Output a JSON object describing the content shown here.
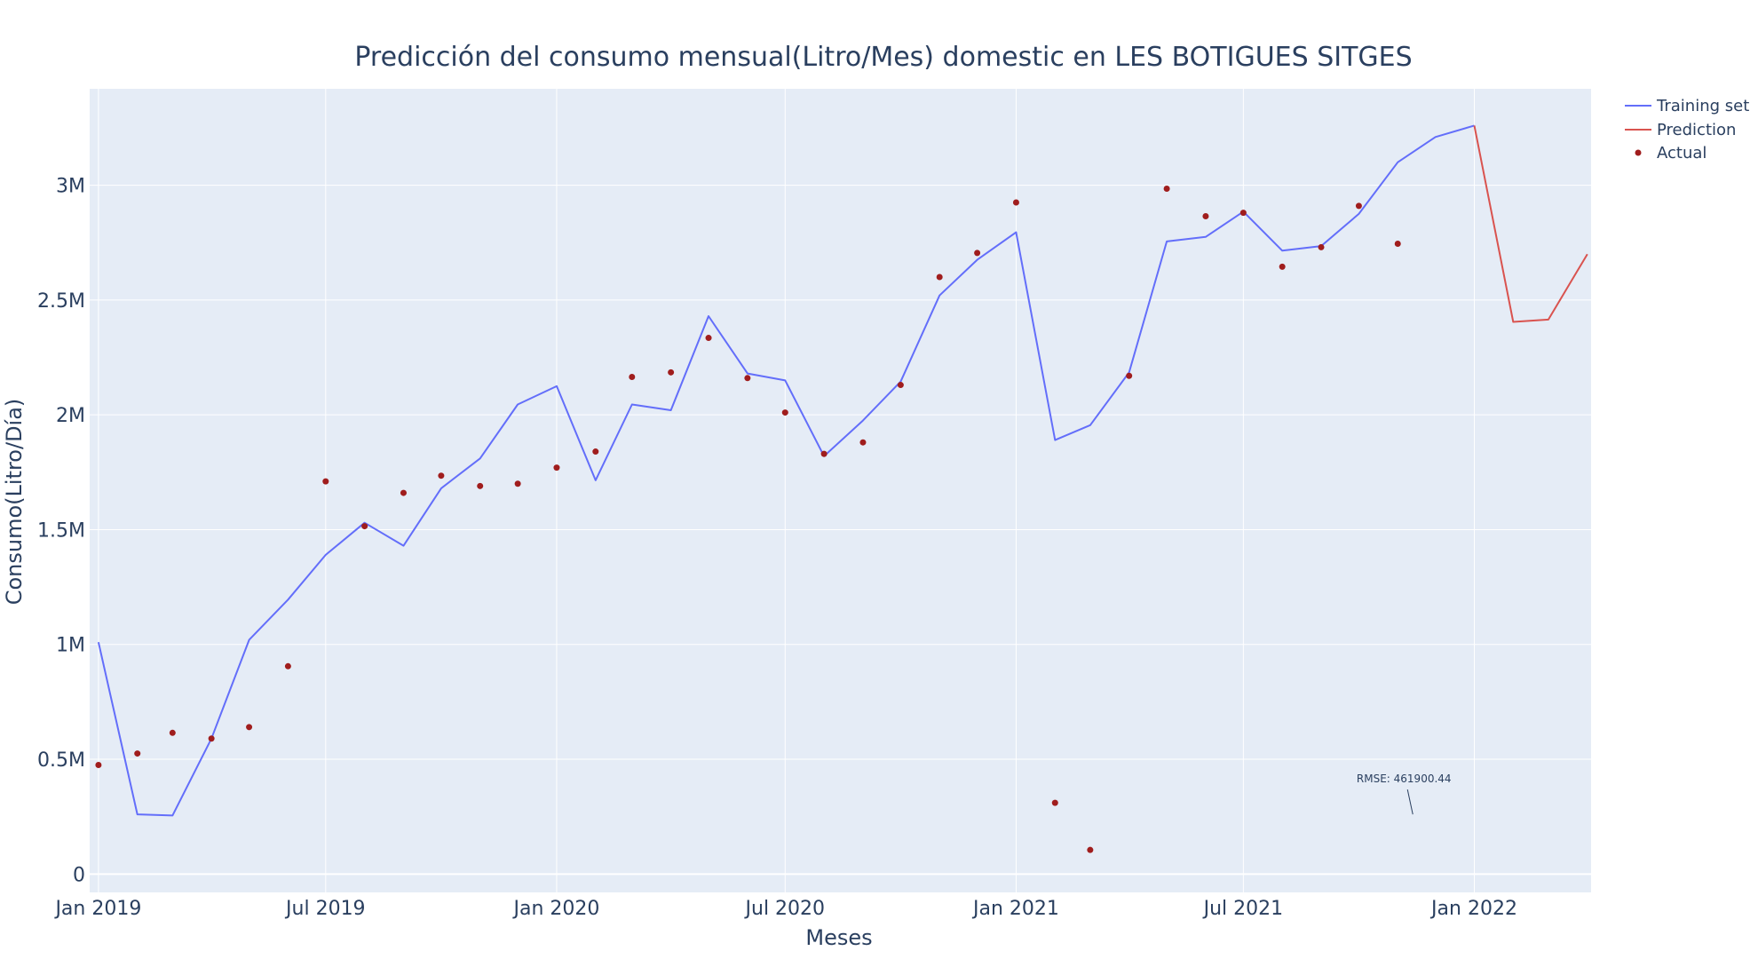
{
  "chart_data": {
    "type": "line",
    "title": "Predicción del consumo mensual(Litro/Mes) domestic en LES BOTIGUES SITGES",
    "xlabel": "Meses",
    "ylabel": "Consumo(Litro/Día)",
    "x_ticks": [
      "Jan 2019",
      "Jul 2019",
      "Jan 2020",
      "Jul 2020",
      "Jan 2021",
      "Jul 2021",
      "Jan 2022"
    ],
    "y_ticks": [
      "0",
      "0.5M",
      "1M",
      "1.5M",
      "2M",
      "2.5M",
      "3M"
    ],
    "ylim": [
      -80000,
      3420000
    ],
    "xlim": [
      "2018-12-25",
      "2022-04-04"
    ],
    "grid": true,
    "legend_position": "top-right",
    "colors": {
      "training": "#636efa",
      "prediction": "#d9534f",
      "actual": "#a01d1d",
      "plot_bg": "#e5ecf6",
      "grid": "#ffffff",
      "text": "#2a3f5f"
    },
    "series": [
      {
        "name": "Training set",
        "kind": "line",
        "x": [
          "2019-01",
          "2019-02",
          "2019-03",
          "2019-04",
          "2019-05",
          "2019-06",
          "2019-07",
          "2019-08",
          "2019-09",
          "2019-10",
          "2019-11",
          "2019-12",
          "2020-01",
          "2020-02",
          "2020-03",
          "2020-04",
          "2020-05",
          "2020-06",
          "2020-07",
          "2020-08",
          "2020-09",
          "2020-10",
          "2020-11",
          "2020-12",
          "2021-01",
          "2021-02",
          "2021-03",
          "2021-04",
          "2021-05",
          "2021-06",
          "2021-07",
          "2021-08",
          "2021-09",
          "2021-10",
          "2021-11",
          "2021-12",
          "2022-01"
        ],
        "y": [
          1010000,
          260000,
          255000,
          590000,
          1020000,
          1195000,
          1390000,
          1530000,
          1430000,
          1680000,
          1810000,
          2045000,
          2125000,
          1715000,
          2045000,
          2020000,
          2430000,
          2180000,
          2150000,
          1820000,
          1975000,
          2145000,
          2520000,
          2675000,
          2795000,
          1890000,
          1955000,
          2185000,
          2755000,
          2775000,
          2885000,
          2715000,
          2735000,
          2875000,
          3100000,
          3210000,
          3260000
        ]
      },
      {
        "name": "Prediction",
        "kind": "line",
        "x": [
          "2022-01",
          "2022-02",
          "2022-03",
          "2022-04"
        ],
        "y": [
          3260000,
          2405000,
          2415000,
          2700000
        ]
      },
      {
        "name": "Actual",
        "kind": "markers",
        "x": [
          "2019-01",
          "2019-02",
          "2019-03",
          "2019-04",
          "2019-05",
          "2019-06",
          "2019-07",
          "2019-08",
          "2019-09",
          "2019-10",
          "2019-11",
          "2019-12",
          "2020-01",
          "2020-02",
          "2020-03",
          "2020-04",
          "2020-05",
          "2020-06",
          "2020-07",
          "2020-08",
          "2020-09",
          "2020-10",
          "2020-11",
          "2020-12",
          "2021-01",
          "2021-02",
          "2021-03",
          "2021-04",
          "2021-05",
          "2021-06",
          "2021-07",
          "2021-08",
          "2021-09",
          "2021-10",
          "2021-11"
        ],
        "y": [
          475000,
          525000,
          615000,
          590000,
          640000,
          905000,
          1710000,
          1515000,
          1660000,
          1735000,
          1690000,
          1700000,
          1770000,
          1840000,
          2165000,
          2185000,
          2335000,
          2160000,
          2010000,
          1830000,
          1880000,
          2130000,
          2600000,
          2705000,
          2925000,
          310000,
          105000,
          2170000,
          2985000,
          2865000,
          2880000,
          2645000,
          2730000,
          2910000,
          2745000
        ]
      }
    ],
    "annotation": {
      "text": "RMSE: 461900.44",
      "x": "2021-11-13",
      "y": 260000
    }
  }
}
